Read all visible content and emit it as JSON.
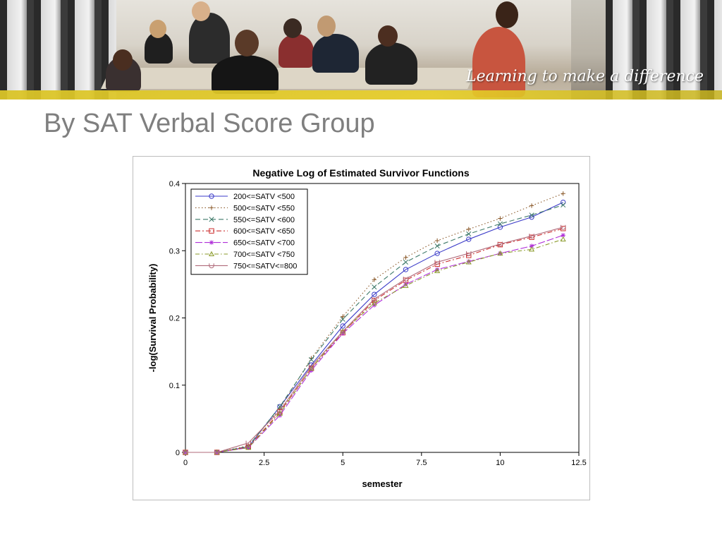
{
  "banner": {
    "tagline": "Learning to make a difference",
    "accent_color": "#e0c82a"
  },
  "slide": {
    "title": "By SAT Verbal Score Group"
  },
  "chart_data": {
    "type": "line",
    "title": "Negative Log of Estimated Survivor Functions",
    "xlabel": "semester",
    "ylabel": "-log(Survival Probability)",
    "xlim": [
      0,
      12.5
    ],
    "ylim": [
      0,
      0.4
    ],
    "xticks": [
      0,
      2.5,
      5,
      7.5,
      10,
      12.5
    ],
    "xtick_labels": [
      "0",
      "2.5",
      "5",
      "7.5",
      "10",
      "12.5"
    ],
    "yticks": [
      0,
      0.1,
      0.2,
      0.3,
      0.4
    ],
    "ytick_labels": [
      "0",
      "0.1",
      "0.2",
      "0.3",
      "0.4"
    ],
    "grid": false,
    "legend_position": "top-left",
    "x": [
      0,
      1,
      2,
      3,
      4,
      5,
      6,
      7,
      8,
      9,
      10,
      11,
      12
    ],
    "series": [
      {
        "name": "200<=SATV <500",
        "color": "#3b3bc8",
        "dash": "",
        "marker": "circle",
        "values": [
          0,
          0,
          0.008,
          0.068,
          0.13,
          0.188,
          0.235,
          0.272,
          0.296,
          0.317,
          0.335,
          0.35,
          0.372
        ]
      },
      {
        "name": "500<=SATV <550",
        "color": "#8b5a2b",
        "dash": "1.5,3",
        "marker": "plus",
        "values": [
          0,
          0,
          0.01,
          0.065,
          0.14,
          0.202,
          0.257,
          0.29,
          0.315,
          0.332,
          0.348,
          0.367,
          0.385
        ]
      },
      {
        "name": "550<=SATV <600",
        "color": "#3f7a6a",
        "dash": "7,4",
        "marker": "x",
        "values": [
          0,
          0,
          0.009,
          0.068,
          0.138,
          0.198,
          0.246,
          0.283,
          0.307,
          0.325,
          0.34,
          0.353,
          0.368
        ]
      },
      {
        "name": "600<=SATV <650",
        "color": "#cc3030",
        "dash": "7,3,2,3",
        "marker": "square",
        "values": [
          0,
          0,
          0.008,
          0.06,
          0.125,
          0.178,
          0.226,
          0.256,
          0.28,
          0.293,
          0.309,
          0.32,
          0.333
        ]
      },
      {
        "name": "650<=SATV <700",
        "color": "#b030d8",
        "dash": "10,3",
        "marker": "star",
        "values": [
          0,
          0,
          0.007,
          0.055,
          0.122,
          0.177,
          0.219,
          0.25,
          0.272,
          0.284,
          0.296,
          0.307,
          0.323
        ]
      },
      {
        "name": "700<=SATV <750",
        "color": "#8a9a2a",
        "dash": "6,3,1.5,3",
        "marker": "triangle",
        "values": [
          0,
          0,
          0.007,
          0.058,
          0.125,
          0.18,
          0.222,
          0.248,
          0.27,
          0.283,
          0.296,
          0.302,
          0.317
        ]
      },
      {
        "name": "750<=SATV<=800",
        "color": "#b06a7a",
        "dash": "",
        "marker": "u",
        "values": [
          0,
          0,
          0.014,
          0.062,
          0.128,
          0.18,
          0.228,
          0.258,
          0.283,
          0.296,
          0.31,
          0.322,
          0.335
        ]
      }
    ]
  }
}
